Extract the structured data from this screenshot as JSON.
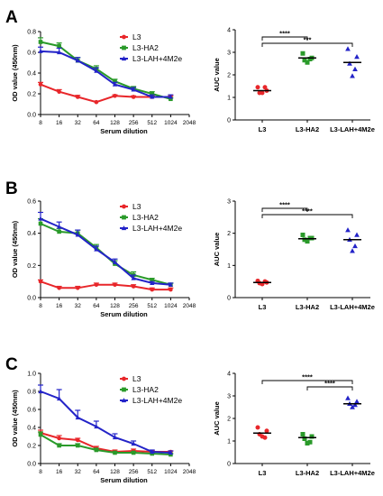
{
  "figure": {
    "colors": {
      "L3": "#e8262a",
      "L3-HA2": "#2a9a2a",
      "L3-LAH+4M2e": "#2323c8",
      "axis": "#000000"
    },
    "panels": [
      {
        "letter": "A",
        "line": {
          "type": "line",
          "xlabel": "Serum dilution",
          "ylabel": "OD value (450nm)",
          "x_scale": "log2",
          "x_ticks": [
            "8",
            "16",
            "32",
            "64",
            "128",
            "256",
            "512",
            "1024",
            "2048"
          ],
          "y_ticks": [
            "0.0",
            "0.2",
            "0.4",
            "0.6",
            "0.8"
          ],
          "ylim": [
            0,
            0.8
          ],
          "legend_position": "top-right",
          "series": [
            {
              "name": "L3",
              "x": [
                8,
                16,
                32,
                64,
                128,
                256,
                512,
                1024
              ],
              "y": [
                0.29,
                0.22,
                0.17,
                0.12,
                0.18,
                0.17,
                0.17,
                0.17
              ],
              "err": [
                0.02,
                0.02,
                0.015,
                0.01,
                0.01,
                0.01,
                0.01,
                0.01
              ]
            },
            {
              "name": "L3-HA2",
              "x": [
                8,
                16,
                32,
                64,
                128,
                256,
                512,
                1024
              ],
              "y": [
                0.7,
                0.66,
                0.52,
                0.44,
                0.32,
                0.25,
                0.2,
                0.15
              ],
              "err": [
                0.04,
                0.03,
                0.03,
                0.03,
                0.02,
                0.02,
                0.02,
                0.01
              ]
            },
            {
              "name": "L3-LAH+4M2e",
              "x": [
                8,
                16,
                32,
                64,
                128,
                256,
                512,
                1024
              ],
              "y": [
                0.61,
                0.6,
                0.52,
                0.42,
                0.29,
                0.24,
                0.17,
                0.17
              ],
              "err": [
                0.04,
                0.04,
                0.03,
                0.03,
                0.02,
                0.02,
                0.02,
                0.02
              ]
            }
          ]
        },
        "scatter": {
          "type": "scatter",
          "ylabel": "AUC value",
          "y_ticks": [
            "0",
            "1",
            "2",
            "3",
            "4"
          ],
          "ylim": [
            0,
            4
          ],
          "categories": [
            "L3",
            "L3-HA2",
            "L3-LAH+4M2e"
          ],
          "points": [
            [
              1.45,
              1.3,
              1.2,
              1.45,
              1.2
            ],
            [
              2.95,
              2.75,
              2.65,
              2.7,
              2.55
            ],
            [
              3.15,
              2.8,
              2.5,
              2.25,
              1.95
            ]
          ],
          "means": [
            1.3,
            2.75,
            2.55
          ],
          "significance": [
            {
              "from": 0,
              "to": 1,
              "label": "****"
            },
            {
              "from": 0,
              "to": 2,
              "label": "***"
            }
          ]
        }
      },
      {
        "letter": "B",
        "line": {
          "type": "line",
          "xlabel": "Serum dilution",
          "ylabel": "OD value (450nm)",
          "x_scale": "log2",
          "x_ticks": [
            "8",
            "16",
            "32",
            "64",
            "128",
            "256",
            "512",
            "1024",
            "2048"
          ],
          "y_ticks": [
            "0.0",
            "0.2",
            "0.4",
            "0.6"
          ],
          "ylim": [
            0,
            0.6
          ],
          "legend_position": "top-right",
          "series": [
            {
              "name": "L3",
              "x": [
                8,
                16,
                32,
                64,
                128,
                256,
                512,
                1024
              ],
              "y": [
                0.1,
                0.06,
                0.06,
                0.08,
                0.08,
                0.07,
                0.05,
                0.05
              ],
              "err": [
                0.01,
                0.01,
                0.01,
                0.01,
                0.01,
                0.01,
                0.01,
                0.01
              ]
            },
            {
              "name": "L3-HA2",
              "x": [
                8,
                16,
                32,
                64,
                128,
                256,
                512,
                1024
              ],
              "y": [
                0.46,
                0.41,
                0.4,
                0.31,
                0.21,
                0.14,
                0.11,
                0.08
              ],
              "err": [
                0.03,
                0.02,
                0.02,
                0.02,
                0.02,
                0.02,
                0.01,
                0.01
              ]
            },
            {
              "name": "L3-LAH+4M2e",
              "x": [
                8,
                16,
                32,
                64,
                128,
                256,
                512,
                1024
              ],
              "y": [
                0.49,
                0.44,
                0.39,
                0.3,
                0.22,
                0.12,
                0.09,
                0.08
              ],
              "err": [
                0.04,
                0.03,
                0.03,
                0.02,
                0.02,
                0.02,
                0.01,
                0.01
              ]
            }
          ]
        },
        "scatter": {
          "type": "scatter",
          "ylabel": "AUC value",
          "y_ticks": [
            "0",
            "1",
            "2",
            "3"
          ],
          "ylim": [
            0,
            3
          ],
          "categories": [
            "L3",
            "L3-HA2",
            "L3-LAH+4M2e"
          ],
          "points": [
            [
              0.52,
              0.47,
              0.45,
              0.5,
              0.42
            ],
            [
              1.95,
              1.85,
              1.8,
              1.85,
              1.75
            ],
            [
              2.1,
              1.95,
              1.8,
              1.6,
              1.45
            ]
          ],
          "means": [
            0.47,
            1.83,
            1.8
          ],
          "significance": [
            {
              "from": 0,
              "to": 1,
              "label": "****"
            },
            {
              "from": 0,
              "to": 2,
              "label": "****"
            }
          ]
        }
      },
      {
        "letter": "C",
        "line": {
          "type": "line",
          "xlabel": "Serum dilution",
          "ylabel": "OD value (450nm)",
          "x_scale": "log2",
          "x_ticks": [
            "8",
            "16",
            "32",
            "64",
            "128",
            "256",
            "512",
            "1024",
            "2048"
          ],
          "y_ticks": [
            "0.0",
            "0.2",
            "0.4",
            "0.6",
            "0.8",
            "1.0"
          ],
          "ylim": [
            0,
            1.0
          ],
          "legend_position": "top-right",
          "series": [
            {
              "name": "L3",
              "x": [
                8,
                16,
                32,
                64,
                128,
                256,
                512,
                1024
              ],
              "y": [
                0.34,
                0.28,
                0.26,
                0.17,
                0.13,
                0.14,
                0.13,
                0.13
              ],
              "err": [
                0.03,
                0.03,
                0.02,
                0.02,
                0.02,
                0.02,
                0.01,
                0.01
              ]
            },
            {
              "name": "L3-HA2",
              "x": [
                8,
                16,
                32,
                64,
                128,
                256,
                512,
                1024
              ],
              "y": [
                0.32,
                0.2,
                0.2,
                0.15,
                0.12,
                0.12,
                0.11,
                0.1
              ],
              "err": [
                0.03,
                0.02,
                0.02,
                0.02,
                0.01,
                0.01,
                0.01,
                0.01
              ]
            },
            {
              "name": "L3-LAH+4M2e",
              "x": [
                8,
                16,
                32,
                64,
                128,
                256,
                512,
                1024
              ],
              "y": [
                0.8,
                0.72,
                0.51,
                0.41,
                0.29,
                0.22,
                0.13,
                0.12
              ],
              "err": [
                0.07,
                0.1,
                0.08,
                0.06,
                0.04,
                0.03,
                0.02,
                0.02
              ]
            }
          ]
        },
        "scatter": {
          "type": "scatter",
          "ylabel": "AUC value",
          "y_ticks": [
            "0",
            "1",
            "2",
            "3",
            "4"
          ],
          "ylim": [
            0,
            4
          ],
          "categories": [
            "L3",
            "L3-HA2",
            "L3-LAH+4M2e"
          ],
          "points": [
            [
              1.6,
              1.45,
              1.3,
              1.15,
              1.2
            ],
            [
              1.3,
              1.2,
              1.1,
              0.95,
              0.9
            ],
            [
              2.9,
              2.75,
              2.65,
              2.6,
              2.5
            ]
          ],
          "means": [
            1.35,
            1.15,
            2.65
          ],
          "significance": [
            {
              "from": 0,
              "to": 2,
              "label": "****"
            },
            {
              "from": 1,
              "to": 2,
              "label": "****"
            }
          ]
        }
      }
    ]
  }
}
